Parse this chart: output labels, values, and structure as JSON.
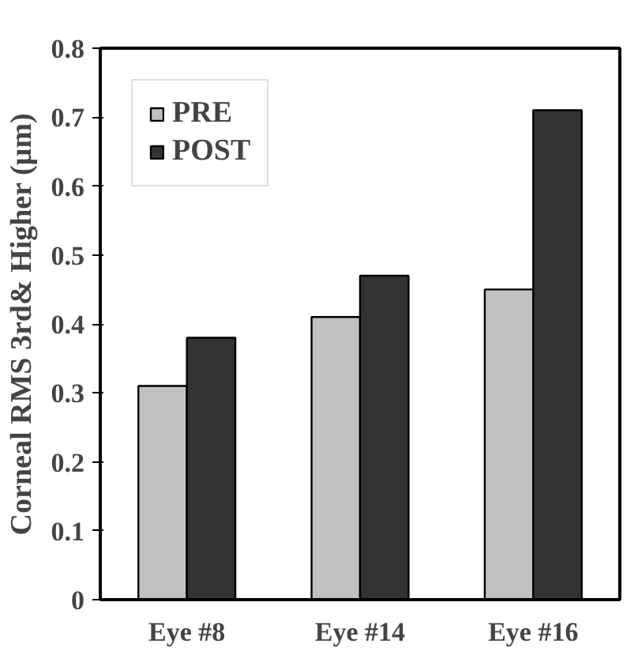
{
  "chart_data": {
    "type": "bar",
    "ylabel": "Corneal RMS 3rd& Higher (µm)",
    "categories": [
      "Eye #8",
      "Eye #14",
      "Eye #16"
    ],
    "series": [
      {
        "name": "PRE",
        "color": "#c0c0c0",
        "values": [
          0.31,
          0.41,
          0.45
        ]
      },
      {
        "name": "POST",
        "color": "#333333",
        "values": [
          0.38,
          0.47,
          0.71
        ]
      }
    ],
    "ylim": [
      0,
      0.8
    ],
    "yticks": [
      0,
      0.1,
      0.2,
      0.3,
      0.4,
      0.5,
      0.6,
      0.7,
      0.8
    ],
    "grid": false,
    "legend": "top left"
  }
}
